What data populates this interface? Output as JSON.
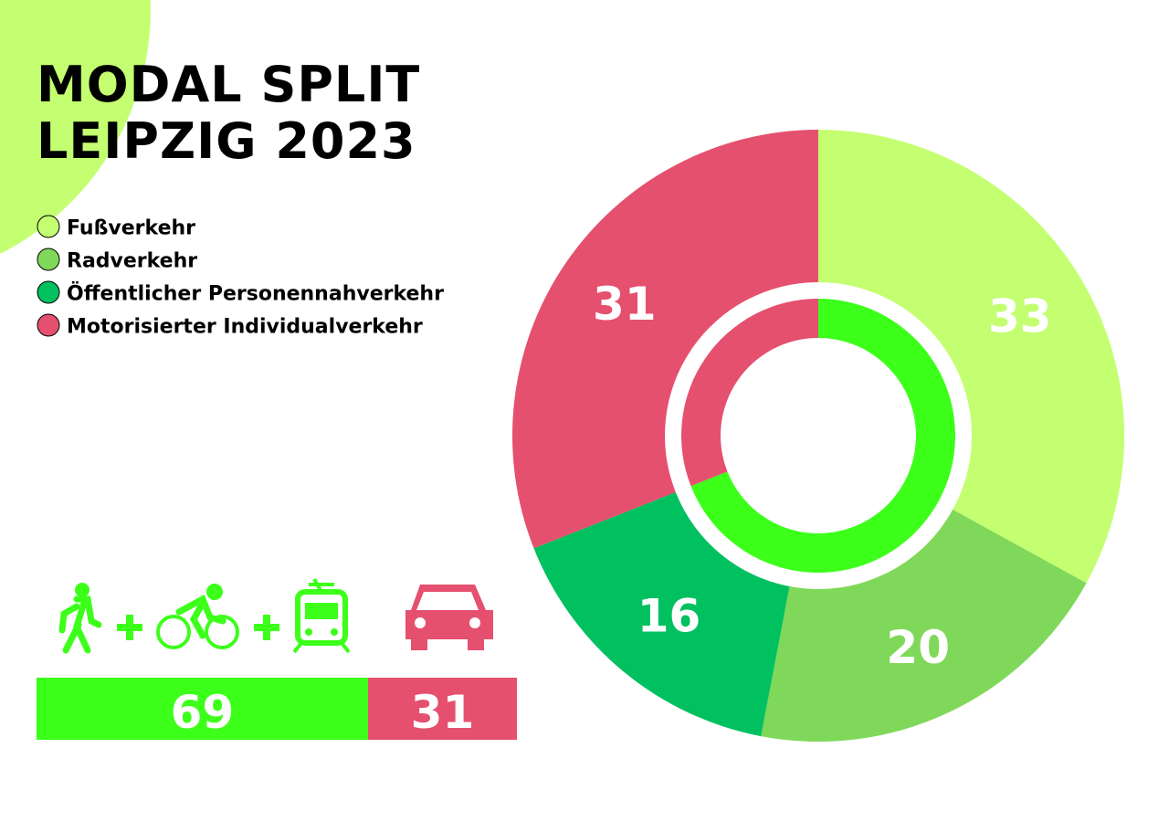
{
  "chart_data": [
    {
      "type": "pie",
      "title": "MODAL SPLIT LEIPZIG 2023",
      "categories": [
        "Fußverkehr",
        "Radverkehr",
        "Öffentlicher Personennahverkehr",
        "Motorisierter Individualverkehr"
      ],
      "values": [
        33,
        20,
        16,
        31
      ],
      "colors": [
        "#c3ff70",
        "#80d85a",
        "#00c060",
        "#e5506f"
      ]
    },
    {
      "type": "bar",
      "values": [
        69,
        31
      ],
      "colors": [
        "#3cff1a",
        "#e5506f"
      ],
      "xlim": [
        0,
        100
      ]
    }
  ]
}
